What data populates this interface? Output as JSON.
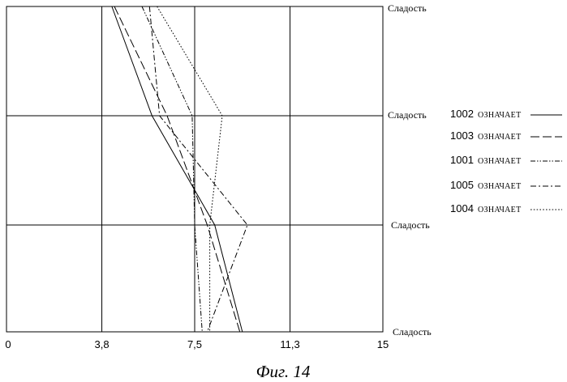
{
  "chart_data": {
    "type": "line",
    "orientation": "horizontal-profile",
    "x_ticks": [
      "0",
      "3,8",
      "7,5",
      "11,3",
      "15"
    ],
    "xlim": [
      0,
      15
    ],
    "grid": true,
    "legend_placement": "right",
    "row_labels": [
      "Сладость",
      "Сладость",
      "Сладость",
      "Сладость"
    ],
    "series": [
      {
        "name": "1002",
        "legend_text": "ОЗНАЧАЕТ",
        "dash": "solid",
        "values": [
          4.2,
          5.8,
          8.3,
          9.4
        ]
      },
      {
        "name": "1003",
        "legend_text": "ОЗНАЧАЕТ",
        "dash": "longdash",
        "values": [
          4.3,
          6.4,
          8.0,
          9.3
        ]
      },
      {
        "name": "1001",
        "legend_text": "ОЗНАЧАЕТ",
        "dash": "dashdotdot",
        "values": [
          5.4,
          7.4,
          7.5,
          7.8
        ]
      },
      {
        "name": "1005",
        "legend_text": "ОЗНАЧАЕТ",
        "dash": "dashdot",
        "values": [
          5.7,
          6.1,
          9.6,
          8.0
        ]
      },
      {
        "name": "1004",
        "legend_text": "ОЗНАЧАЕТ",
        "dash": "dotted",
        "values": [
          6.0,
          8.6,
          8.1,
          8.1
        ]
      }
    ]
  },
  "caption": "Фиг. 14"
}
